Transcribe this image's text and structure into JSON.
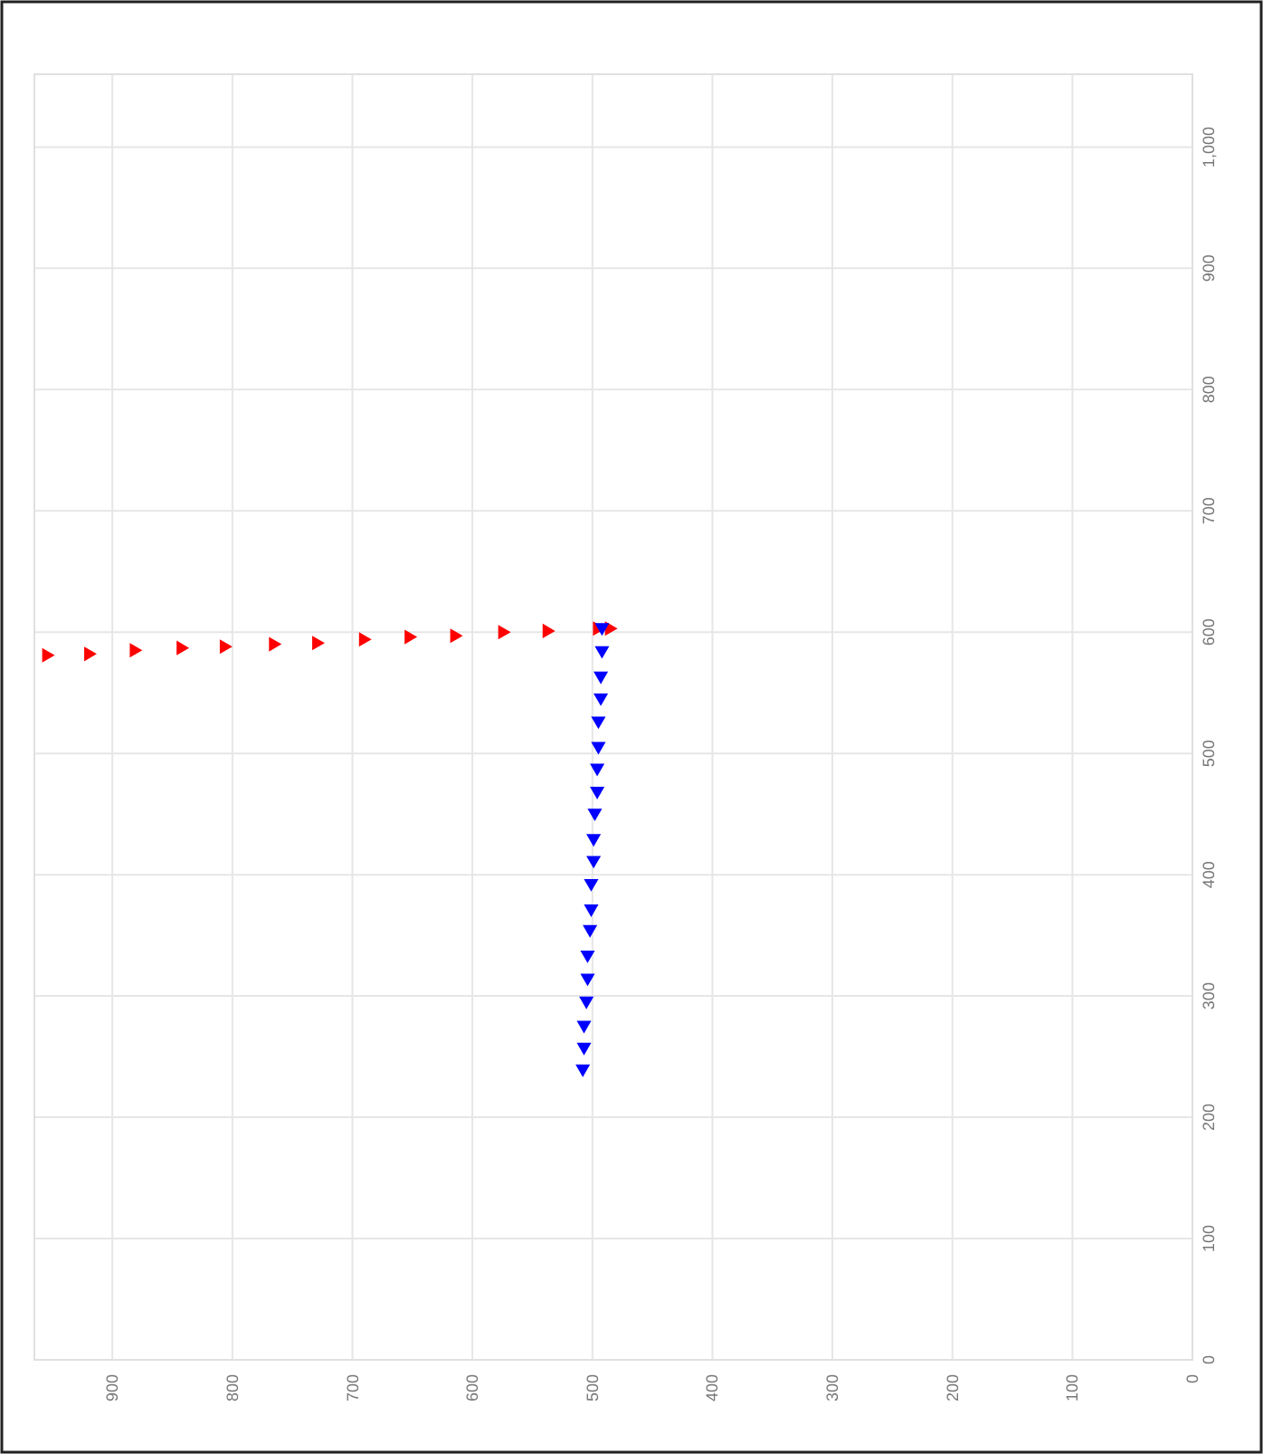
{
  "chart_data": {
    "type": "scatter",
    "xlim": [
      965,
      0
    ],
    "ylim": [
      0,
      1060
    ],
    "xticks": [
      0,
      100,
      200,
      300,
      400,
      500,
      600,
      700,
      800,
      900
    ],
    "yticks": [
      0,
      100,
      200,
      300,
      400,
      500,
      600,
      700,
      800,
      900,
      {
        "value": 1000,
        "label": "1,000"
      }
    ],
    "grid": true,
    "marker": "triangle",
    "series": [
      {
        "color": "#ff0000",
        "x": [
          955,
          920,
          882,
          843,
          807,
          766,
          730,
          691,
          653,
          615,
          575,
          538,
          496,
          486
        ],
        "values": [
          581,
          582,
          585,
          587,
          588,
          590,
          591,
          594,
          596,
          597,
          600,
          601,
          603,
          603
        ]
      },
      {
        "color": "#0000ff",
        "x": [
          492,
          492,
          493,
          493,
          495,
          495,
          496,
          496,
          498,
          499,
          499,
          501,
          501,
          502,
          504,
          504,
          505,
          507,
          507,
          508
        ],
        "values": [
          604,
          585,
          564,
          546,
          527,
          506,
          488,
          469,
          451,
          430,
          412,
          393,
          372,
          355,
          334,
          315,
          296,
          276,
          258,
          240
        ]
      }
    ]
  }
}
